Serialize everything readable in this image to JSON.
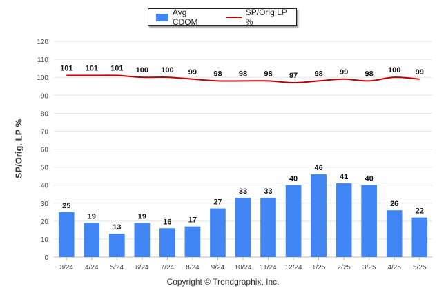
{
  "chart_data": {
    "type": "bar+line",
    "categories": [
      "3/24",
      "4/24",
      "5/24",
      "6/24",
      "7/24",
      "8/24",
      "9/24",
      "10/24",
      "11/24",
      "12/24",
      "1/25",
      "2/25",
      "3/25",
      "4/25",
      "5/25"
    ],
    "series": [
      {
        "name": "Avg CDOM",
        "type": "bar",
        "color": "#4285f4",
        "values": [
          25,
          19,
          13,
          19,
          16,
          17,
          27,
          33,
          33,
          40,
          46,
          41,
          40,
          26,
          22
        ]
      },
      {
        "name": "SP/Orig LP %",
        "type": "line",
        "color": "#c00000",
        "values": [
          101,
          101,
          101,
          100,
          100,
          99,
          98,
          98,
          98,
          97,
          98,
          99,
          98,
          100,
          99
        ]
      }
    ],
    "ylabel": "SP/Orig. LP %",
    "ylim": [
      0,
      120
    ],
    "yticks": [
      0,
      10,
      20,
      30,
      40,
      50,
      60,
      70,
      80,
      90,
      100,
      110,
      120
    ],
    "grid": true,
    "legend": "top-center"
  },
  "footer": "Copyright © Trendgraphix, Inc."
}
